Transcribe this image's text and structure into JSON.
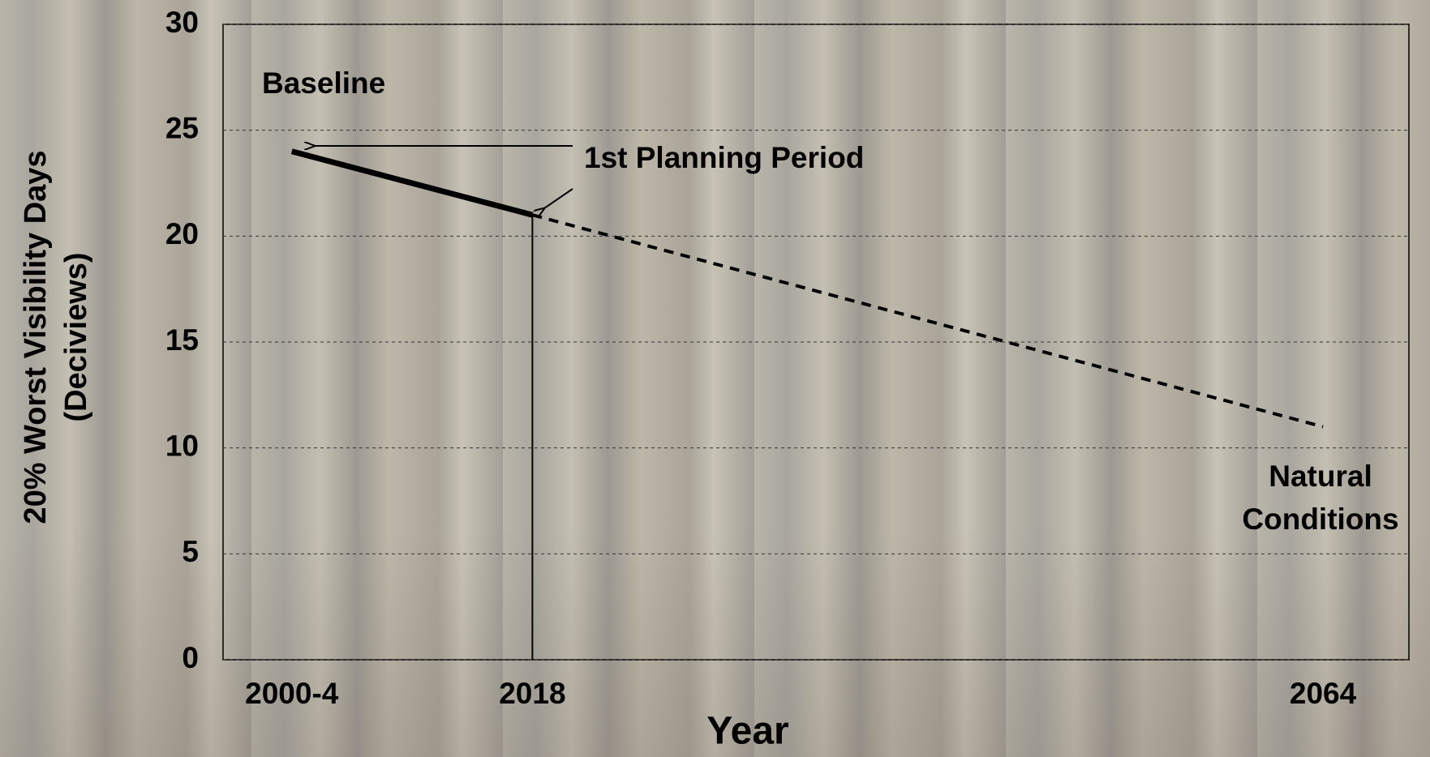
{
  "chart_data": {
    "type": "line",
    "x_label": "Year",
    "y_label": [
      "20% Worst Visibility Days",
      "(Deciviews)"
    ],
    "series": [
      {
        "color": "#000000",
        "style": "solid",
        "x": [
          2004,
          2018
        ],
        "values": [
          24,
          21
        ]
      },
      {
        "color": "#000000",
        "style": "dashed",
        "x": [
          2018,
          2064
        ],
        "values": [
          21,
          11
        ]
      }
    ],
    "reference_x": 2018,
    "annotations": {
      "baseline": "Baseline",
      "planning": "1st Planning Period",
      "natural": [
        "Natural",
        "Conditions"
      ]
    },
    "xlim": [
      2000,
      2069
    ],
    "xticks": [
      {
        "value": 2004,
        "label": "2000-4"
      },
      2018,
      2064
    ],
    "ylim": [
      0,
      30
    ],
    "yticks": [
      0,
      5,
      10,
      15,
      20,
      25,
      30
    ],
    "grid": true
  }
}
